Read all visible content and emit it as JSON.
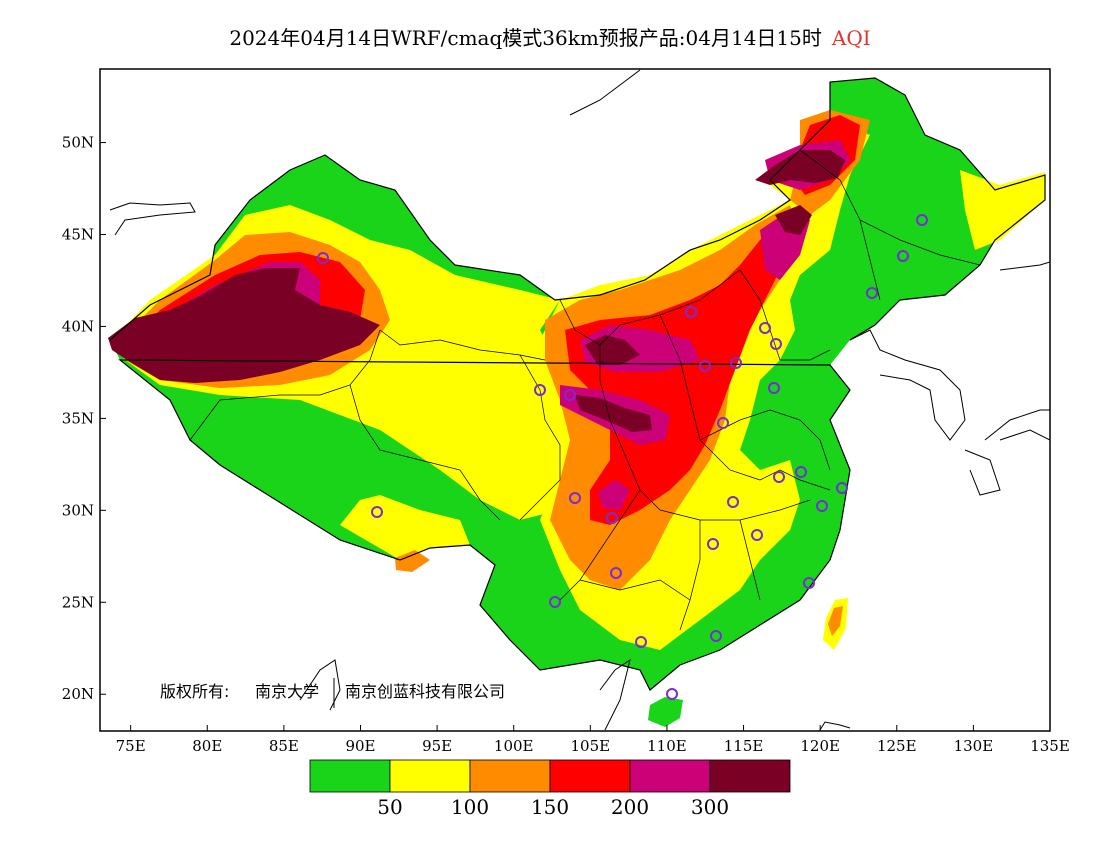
{
  "title": {
    "main": "2024年04月14日WRF/cmaq模式36km预报产品:04月14日15时",
    "variable": "AQI",
    "variable_color": "#e8322e"
  },
  "copyright": {
    "prefix": "版权所有:",
    "org1": "南京大学",
    "org2": "南京创蓝科技有限公司"
  },
  "axes": {
    "x_ticks": [
      "75E",
      "80E",
      "85E",
      "90E",
      "95E",
      "100E",
      "105E",
      "110E",
      "115E",
      "120E",
      "125E",
      "130E",
      "135E"
    ],
    "y_ticks": [
      "50N",
      "45N",
      "40N",
      "35N",
      "30N",
      "25N",
      "20N"
    ],
    "lon_range": [
      73,
      135
    ],
    "lat_range": [
      18,
      54
    ]
  },
  "legend": {
    "colors": [
      "#1ad41a",
      "#ffff00",
      "#ff8c00",
      "#ff0000",
      "#cc0077",
      "#7a0026"
    ],
    "labels": [
      "50",
      "100",
      "150",
      "200",
      "300"
    ]
  },
  "monitor_marker_color": "#7a2bd8"
}
